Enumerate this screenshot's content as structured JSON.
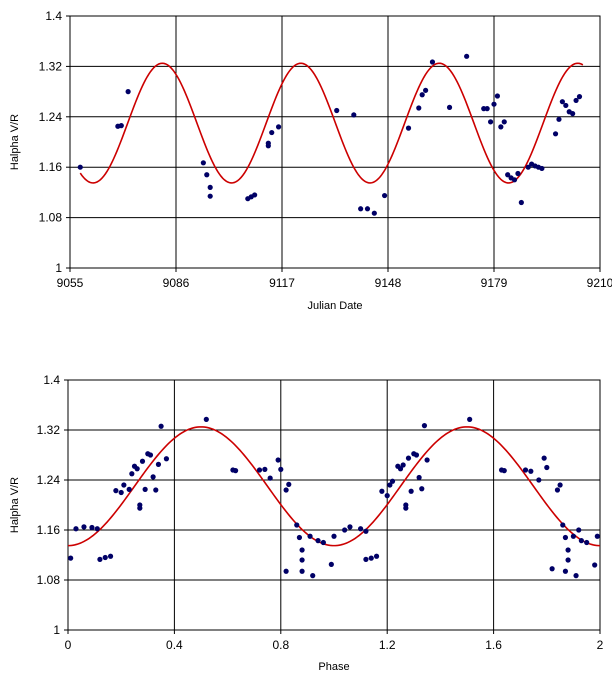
{
  "chart_data": [
    {
      "type": "scatter",
      "xlabel": "Julian Date",
      "ylabel": "Halpha V/R",
      "xlim": [
        9055,
        9210
      ],
      "ylim": [
        1,
        1.4
      ],
      "xticks": [
        "9055",
        "9086",
        "9117",
        "9148",
        "9179",
        "9210"
      ],
      "yticks": [
        "1",
        "1.08",
        "1.16",
        "1.24",
        "1.32",
        "1.4"
      ],
      "grid": true,
      "point_color": "#000066",
      "curve_color": "#cc0000",
      "fit": {
        "mean": 1.23,
        "amplitude": 0.095,
        "period": 40.5,
        "peak_x": 9082
      },
      "fit_range": [
        9058,
        9205
      ],
      "series": [
        {
          "points": [
            [
              9058,
              1.16
            ],
            [
              9069,
              1.225
            ],
            [
              9070,
              1.226
            ],
            [
              9072,
              1.28
            ],
            [
              9094,
              1.167
            ],
            [
              9095,
              1.148
            ],
            [
              9096,
              1.128
            ],
            [
              9096,
              1.114
            ],
            [
              9107,
              1.11
            ],
            [
              9108,
              1.113
            ],
            [
              9109,
              1.116
            ],
            [
              9113,
              1.194
            ],
            [
              9113,
              1.198
            ],
            [
              9114,
              1.215
            ],
            [
              9116,
              1.224
            ],
            [
              9133,
              1.25
            ],
            [
              9138,
              1.243
            ],
            [
              9140,
              1.094
            ],
            [
              9142,
              1.094
            ],
            [
              9144,
              1.087
            ],
            [
              9147,
              1.115
            ],
            [
              9154,
              1.222
            ],
            [
              9157,
              1.254
            ],
            [
              9158,
              1.275
            ],
            [
              9159,
              1.282
            ],
            [
              9161,
              1.327
            ],
            [
              9166,
              1.255
            ],
            [
              9171,
              1.336
            ],
            [
              9176,
              1.253
            ],
            [
              9177,
              1.253
            ],
            [
              9178,
              1.232
            ],
            [
              9179,
              1.26
            ],
            [
              9180,
              1.273
            ],
            [
              9181,
              1.224
            ],
            [
              9182,
              1.232
            ],
            [
              9183,
              1.148
            ],
            [
              9184,
              1.143
            ],
            [
              9185,
              1.14
            ],
            [
              9186,
              1.15
            ],
            [
              9187,
              1.104
            ],
            [
              9189,
              1.16
            ],
            [
              9190,
              1.165
            ],
            [
              9191,
              1.162
            ],
            [
              9192,
              1.16
            ],
            [
              9193,
              1.158
            ],
            [
              9197,
              1.213
            ],
            [
              9198,
              1.236
            ],
            [
              9199,
              1.264
            ],
            [
              9200,
              1.258
            ],
            [
              9201,
              1.248
            ],
            [
              9202,
              1.245
            ],
            [
              9203,
              1.266
            ],
            [
              9204,
              1.272
            ]
          ]
        }
      ]
    },
    {
      "type": "scatter",
      "xlabel": "Phase",
      "ylabel": "Halpha V/R",
      "xlim": [
        0,
        2
      ],
      "ylim": [
        1,
        1.4
      ],
      "xticks": [
        "0",
        "0.4",
        "0.8",
        "1.2",
        "1.6",
        "2"
      ],
      "yticks": [
        "1",
        "1.08",
        "1.16",
        "1.24",
        "1.32",
        "1.4"
      ],
      "grid": true,
      "point_color": "#000066",
      "curve_color": "#cc0000",
      "fit": {
        "mean": 1.23,
        "amplitude": 0.095,
        "period": 1,
        "peak_x": 0.5
      },
      "fit_range": [
        0,
        2
      ],
      "series": [
        {
          "points": [
            [
              0.01,
              1.115
            ],
            [
              0.03,
              1.162
            ],
            [
              0.06,
              1.165
            ],
            [
              0.09,
              1.164
            ],
            [
              0.11,
              1.162
            ],
            [
              0.12,
              1.113
            ],
            [
              0.14,
              1.116
            ],
            [
              0.16,
              1.118
            ],
            [
              0.18,
              1.223
            ],
            [
              0.2,
              1.22
            ],
            [
              0.21,
              1.232
            ],
            [
              0.23,
              1.225
            ],
            [
              0.24,
              1.25
            ],
            [
              0.25,
              1.262
            ],
            [
              0.26,
              1.258
            ],
            [
              0.27,
              1.195
            ],
            [
              0.27,
              1.2
            ],
            [
              0.28,
              1.27
            ],
            [
              0.29,
              1.225
            ],
            [
              0.3,
              1.282
            ],
            [
              0.31,
              1.28
            ],
            [
              0.32,
              1.245
            ],
            [
              0.33,
              1.224
            ],
            [
              0.34,
              1.265
            ],
            [
              0.35,
              1.326
            ],
            [
              0.37,
              1.274
            ],
            [
              0.52,
              1.337
            ],
            [
              0.62,
              1.256
            ],
            [
              0.63,
              1.255
            ],
            [
              0.72,
              1.256
            ],
            [
              0.74,
              1.257
            ],
            [
              0.76,
              1.243
            ],
            [
              0.79,
              1.272
            ],
            [
              0.8,
              1.257
            ],
            [
              0.82,
              1.224
            ],
            [
              0.83,
              1.233
            ],
            [
              0.82,
              1.094
            ],
            [
              0.86,
              1.168
            ],
            [
              0.87,
              1.148
            ],
            [
              0.88,
              1.128
            ],
            [
              0.88,
              1.112
            ],
            [
              0.88,
              1.094
            ],
            [
              0.91,
              1.15
            ],
            [
              0.92,
              1.087
            ],
            [
              0.94,
              1.143
            ],
            [
              0.96,
              1.14
            ],
            [
              0.99,
              1.105
            ],
            [
              1.0,
              1.15
            ],
            [
              1.04,
              1.16
            ],
            [
              1.06,
              1.165
            ],
            [
              1.1,
              1.162
            ],
            [
              1.12,
              1.158
            ],
            [
              1.12,
              1.113
            ],
            [
              1.14,
              1.115
            ],
            [
              1.16,
              1.118
            ],
            [
              1.18,
              1.222
            ],
            [
              1.2,
              1.215
            ],
            [
              1.21,
              1.232
            ],
            [
              1.22,
              1.238
            ],
            [
              1.24,
              1.262
            ],
            [
              1.25,
              1.258
            ],
            [
              1.26,
              1.264
            ],
            [
              1.27,
              1.195
            ],
            [
              1.27,
              1.2
            ],
            [
              1.28,
              1.275
            ],
            [
              1.29,
              1.222
            ],
            [
              1.3,
              1.282
            ],
            [
              1.31,
              1.28
            ],
            [
              1.32,
              1.244
            ],
            [
              1.33,
              1.226
            ],
            [
              1.34,
              1.327
            ],
            [
              1.35,
              1.272
            ],
            [
              1.51,
              1.337
            ],
            [
              1.63,
              1.256
            ],
            [
              1.64,
              1.255
            ],
            [
              1.72,
              1.256
            ],
            [
              1.74,
              1.254
            ],
            [
              1.77,
              1.24
            ],
            [
              1.79,
              1.275
            ],
            [
              1.8,
              1.26
            ],
            [
              1.82,
              1.098
            ],
            [
              1.84,
              1.224
            ],
            [
              1.85,
              1.232
            ],
            [
              1.86,
              1.168
            ],
            [
              1.87,
              1.148
            ],
            [
              1.88,
              1.128
            ],
            [
              1.88,
              1.112
            ],
            [
              1.87,
              1.094
            ],
            [
              1.9,
              1.15
            ],
            [
              1.91,
              1.087
            ],
            [
              1.92,
              1.16
            ],
            [
              1.93,
              1.143
            ],
            [
              1.95,
              1.14
            ],
            [
              1.98,
              1.104
            ],
            [
              1.99,
              1.15
            ]
          ]
        }
      ]
    }
  ]
}
